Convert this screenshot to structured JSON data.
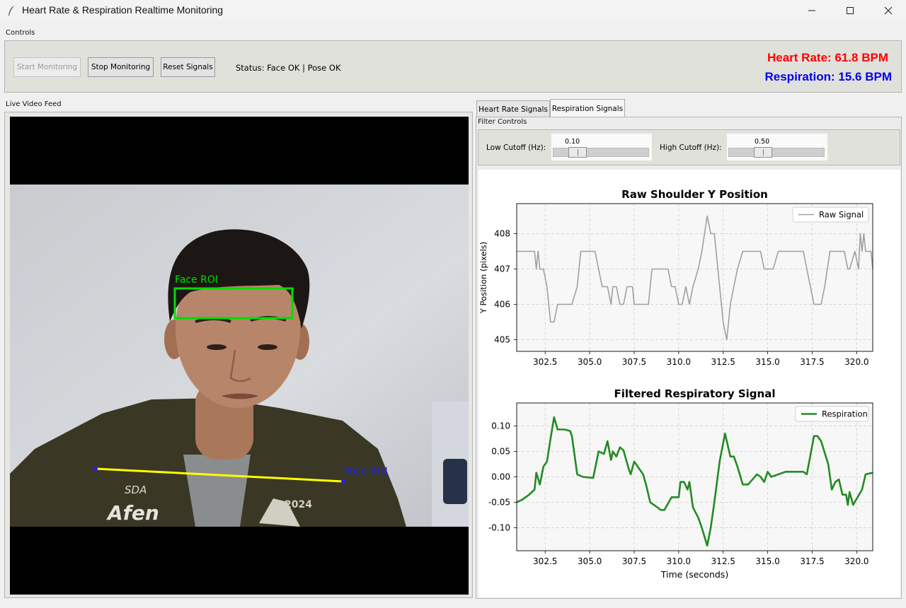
{
  "window": {
    "title": "Heart Rate & Respiration Realtime Monitoring",
    "minimize_icon": "minimize-icon",
    "maximize_icon": "maximize-icon",
    "close_icon": "close-icon"
  },
  "controls": {
    "group_label": "Controls",
    "start_label": "Start Monitoring",
    "start_enabled": false,
    "stop_label": "Stop Monitoring",
    "reset_label": "Reset Signals",
    "status_text": "Status: Face OK | Pose OK",
    "heart_rate_text": "Heart Rate: 61.8 BPM",
    "respiration_text": "Respiration: 15.6 BPM",
    "heart_rate_color": "#ff0000",
    "respiration_color": "#0000ee"
  },
  "video": {
    "group_label": "Live Video Feed",
    "face_roi_label": "Face ROI",
    "pose_roi_label": "Pose ROI",
    "face_roi_color": "#00dd00",
    "pose_line_color": "#ffff00",
    "pose_label_color": "#2020ff",
    "shirt_text_1": "SDA",
    "shirt_text_2": "Afen",
    "shirt_text_3": "2024"
  },
  "tabs": [
    {
      "label": "Heart Rate Signals",
      "active": false
    },
    {
      "label": "Respiration Signals",
      "active": true
    }
  ],
  "filter": {
    "group_label": "Filter Controls",
    "low_label": "Low Cutoff (Hz):",
    "low_value": "0.10",
    "low_fraction": 0.2,
    "high_label": "High Cutoff (Hz):",
    "high_value": "0.50",
    "high_fraction": 0.33
  },
  "chart_data": [
    {
      "type": "line",
      "title": "Raw Shoulder Y Position",
      "xlabel": "",
      "ylabel": "Y Position (pixels)",
      "xlim": [
        300.9,
        320.9
      ],
      "ylim": [
        404.67,
        408.85
      ],
      "xticks": [
        "302.5",
        "305.0",
        "307.5",
        "310.0",
        "312.5",
        "315.0",
        "317.5",
        "320.0"
      ],
      "yticks": [
        "405",
        "406",
        "407",
        "408"
      ],
      "grid": true,
      "legend_position": "upper-right",
      "series": [
        {
          "name": "Raw Signal",
          "color": "#a0a0a0",
          "x": [
            300.9,
            301.9,
            302.0,
            302.1,
            302.2,
            302.4,
            302.6,
            302.8,
            303.0,
            303.2,
            303.6,
            304.0,
            304.3,
            304.5,
            305.3,
            305.5,
            305.7,
            306.0,
            306.2,
            306.3,
            306.5,
            306.7,
            306.9,
            307.1,
            307.4,
            307.5,
            307.7,
            308.3,
            308.5,
            309.0,
            309.4,
            309.6,
            309.8,
            310.0,
            310.2,
            310.4,
            310.6,
            310.8,
            311.1,
            311.3,
            311.6,
            311.8,
            312.0,
            312.2,
            312.5,
            312.7,
            312.9,
            313.1,
            313.3,
            313.6,
            313.9,
            314.6,
            314.8,
            315.3,
            315.6,
            317.0,
            317.2,
            317.6,
            318.0,
            318.2,
            318.5,
            319.3,
            319.5,
            319.6,
            319.9,
            320.1,
            320.2,
            320.3,
            320.4,
            320.5,
            320.8,
            320.9
          ],
          "y": [
            407.5,
            407.5,
            407.0,
            407.5,
            407.0,
            407.0,
            406.5,
            405.5,
            405.5,
            406.0,
            406.0,
            406.0,
            406.5,
            407.5,
            407.5,
            407.0,
            406.5,
            406.5,
            406.0,
            406.5,
            406.5,
            406.0,
            406.0,
            406.5,
            406.5,
            406.0,
            406.0,
            406.0,
            407.0,
            407.0,
            407.0,
            406.5,
            406.5,
            406.0,
            406.0,
            406.5,
            406.0,
            406.5,
            407.0,
            407.5,
            408.5,
            408.0,
            408.0,
            407.0,
            405.5,
            405.0,
            406.0,
            406.5,
            407.0,
            407.5,
            407.5,
            407.5,
            407.0,
            407.0,
            407.5,
            407.5,
            407.0,
            406.0,
            406.0,
            406.5,
            407.5,
            407.5,
            407.0,
            407.0,
            407.5,
            407.0,
            408.0,
            407.5,
            408.0,
            407.5,
            407.5,
            407.0
          ]
        }
      ]
    },
    {
      "type": "line",
      "title": "Filtered Respiratory Signal",
      "xlabel": "Time (seconds)",
      "ylabel": "",
      "xlim": [
        300.9,
        320.9
      ],
      "ylim": [
        -0.145,
        0.145
      ],
      "xticks": [
        "302.5",
        "305.0",
        "307.5",
        "310.0",
        "312.5",
        "315.0",
        "317.5",
        "320.0"
      ],
      "yticks": [
        "0.10",
        "0.05",
        "0.00",
        "-0.05",
        "-0.10"
      ],
      "grid": true,
      "legend_position": "upper-right",
      "series": [
        {
          "name": "Respiration",
          "color": "#228b22",
          "x": [
            300.9,
            301.2,
            301.6,
            301.9,
            302.0,
            302.2,
            302.4,
            302.6,
            302.8,
            303.0,
            303.2,
            303.6,
            303.9,
            304.0,
            304.3,
            304.6,
            305.2,
            305.5,
            305.8,
            306.0,
            306.2,
            306.3,
            306.5,
            306.7,
            306.9,
            307.2,
            307.3,
            307.5,
            307.8,
            308.0,
            308.2,
            308.4,
            308.6,
            309.0,
            309.2,
            309.6,
            309.8,
            310.0,
            310.1,
            310.3,
            310.5,
            310.6,
            310.8,
            311.1,
            311.3,
            311.6,
            311.8,
            312.0,
            312.3,
            312.6,
            312.9,
            313.1,
            313.3,
            313.6,
            313.9,
            314.4,
            314.6,
            314.8,
            315.0,
            315.2,
            316.0,
            316.2,
            316.5,
            317.0,
            317.2,
            317.6,
            317.8,
            318.0,
            318.4,
            318.6,
            318.8,
            319.0,
            319.2,
            319.4,
            319.5,
            319.6,
            319.8,
            320.3,
            320.5,
            320.9
          ],
          "y": [
            -0.05,
            -0.045,
            -0.035,
            -0.025,
            0.008,
            -0.015,
            0.02,
            0.03,
            0.075,
            0.117,
            0.093,
            0.093,
            0.09,
            0.08,
            0.005,
            0.0,
            -0.002,
            0.05,
            0.045,
            0.07,
            0.033,
            0.05,
            0.04,
            0.058,
            0.052,
            0.015,
            0.005,
            0.03,
            0.015,
            0.005,
            -0.02,
            -0.05,
            -0.055,
            -0.065,
            -0.065,
            -0.04,
            -0.04,
            -0.04,
            -0.01,
            -0.01,
            -0.025,
            -0.01,
            -0.06,
            -0.08,
            -0.1,
            -0.135,
            -0.1,
            -0.05,
            0.03,
            0.085,
            0.04,
            0.04,
            0.02,
            -0.015,
            -0.015,
            0.005,
            0.0,
            -0.01,
            0.01,
            0.0,
            0.01,
            0.01,
            0.01,
            0.01,
            0.005,
            0.08,
            0.08,
            0.07,
            0.025,
            -0.025,
            -0.01,
            -0.005,
            -0.035,
            -0.035,
            -0.055,
            -0.03,
            -0.055,
            -0.025,
            0.005,
            0.008
          ]
        }
      ]
    }
  ]
}
